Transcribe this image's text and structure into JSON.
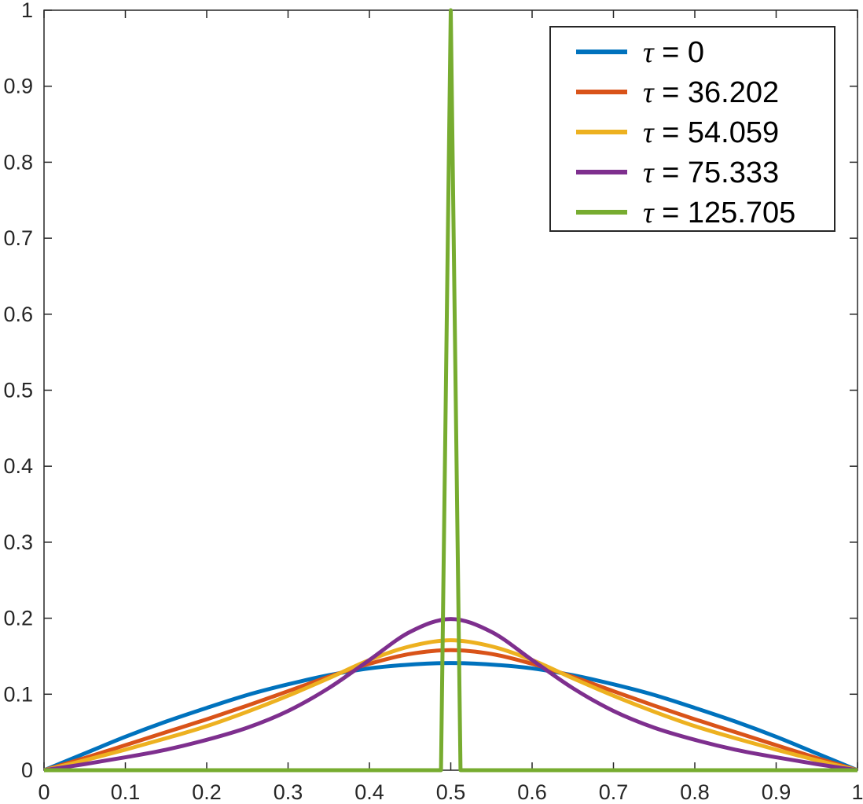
{
  "chart_data": {
    "type": "line",
    "title": "",
    "xlabel": "",
    "ylabel": "",
    "xlim": [
      0,
      1
    ],
    "ylim": [
      0,
      1
    ],
    "x_ticks": [
      0,
      0.1,
      0.2,
      0.3,
      0.4,
      0.5,
      0.6,
      0.7,
      0.8,
      0.9,
      1
    ],
    "x_tick_labels": [
      "0",
      "0.1",
      "0.2",
      "0.3",
      "0.4",
      "0.5",
      "0.6",
      "0.7",
      "0.8",
      "0.9",
      "1"
    ],
    "y_ticks": [
      0,
      0.1,
      0.2,
      0.3,
      0.4,
      0.5,
      0.6,
      0.7,
      0.8,
      0.9,
      1
    ],
    "y_tick_labels": [
      "0",
      "0.1",
      "0.2",
      "0.3",
      "0.4",
      "0.5",
      "0.6",
      "0.7",
      "0.8",
      "0.9",
      "1"
    ],
    "grid": false,
    "legend_position": "top-right",
    "series": [
      {
        "name": "τ = 0",
        "legend_symbol": "τ",
        "legend_value": " = 0",
        "color": "#0072BD",
        "x": [
          0,
          0.05,
          0.1,
          0.15,
          0.2,
          0.25,
          0.3,
          0.35,
          0.4,
          0.45,
          0.5,
          0.55,
          0.6,
          0.65,
          0.7,
          0.75,
          0.8,
          0.85,
          0.9,
          0.95,
          1
        ],
        "y": [
          0,
          0.022,
          0.044,
          0.064,
          0.082,
          0.099,
          0.113,
          0.125,
          0.134,
          0.139,
          0.141,
          0.139,
          0.134,
          0.125,
          0.113,
          0.099,
          0.082,
          0.064,
          0.044,
          0.022,
          0
        ]
      },
      {
        "name": "τ = 36.202",
        "legend_symbol": "τ",
        "legend_value": " = 36.202",
        "color": "#D95319",
        "x": [
          0,
          0.05,
          0.1,
          0.15,
          0.2,
          0.25,
          0.3,
          0.35,
          0.4,
          0.45,
          0.5,
          0.55,
          0.6,
          0.65,
          0.7,
          0.75,
          0.8,
          0.85,
          0.9,
          0.95,
          1
        ],
        "y": [
          0,
          0.016,
          0.033,
          0.05,
          0.067,
          0.085,
          0.104,
          0.123,
          0.14,
          0.153,
          0.158,
          0.153,
          0.14,
          0.123,
          0.104,
          0.085,
          0.067,
          0.05,
          0.033,
          0.016,
          0
        ]
      },
      {
        "name": "τ = 54.059",
        "legend_symbol": "τ",
        "legend_value": " = 54.059",
        "color": "#EDB120",
        "x": [
          0,
          0.05,
          0.1,
          0.15,
          0.2,
          0.25,
          0.3,
          0.35,
          0.4,
          0.45,
          0.5,
          0.55,
          0.6,
          0.65,
          0.7,
          0.75,
          0.8,
          0.85,
          0.9,
          0.95,
          1
        ],
        "y": [
          0,
          0.013,
          0.027,
          0.042,
          0.058,
          0.077,
          0.098,
          0.121,
          0.145,
          0.163,
          0.171,
          0.163,
          0.145,
          0.121,
          0.098,
          0.077,
          0.058,
          0.042,
          0.027,
          0.013,
          0
        ]
      },
      {
        "name": "τ = 75.333",
        "legend_symbol": "τ",
        "legend_value": " = 75.333",
        "color": "#7E2F8E",
        "x": [
          0,
          0.05,
          0.1,
          0.15,
          0.2,
          0.25,
          0.3,
          0.35,
          0.4,
          0.45,
          0.5,
          0.55,
          0.6,
          0.65,
          0.7,
          0.75,
          0.8,
          0.85,
          0.9,
          0.95,
          1
        ],
        "y": [
          0,
          0.008,
          0.017,
          0.027,
          0.04,
          0.056,
          0.078,
          0.108,
          0.145,
          0.182,
          0.199,
          0.182,
          0.145,
          0.108,
          0.078,
          0.056,
          0.04,
          0.027,
          0.017,
          0.008,
          0
        ]
      },
      {
        "name": "τ = 125.705",
        "legend_symbol": "τ",
        "legend_value": " = 125.705",
        "color": "#77AC30",
        "x": [
          0,
          0.487,
          0.488,
          0.5,
          0.512,
          0.513,
          1
        ],
        "y": [
          0,
          0,
          0,
          1,
          0,
          0,
          0
        ]
      }
    ]
  }
}
